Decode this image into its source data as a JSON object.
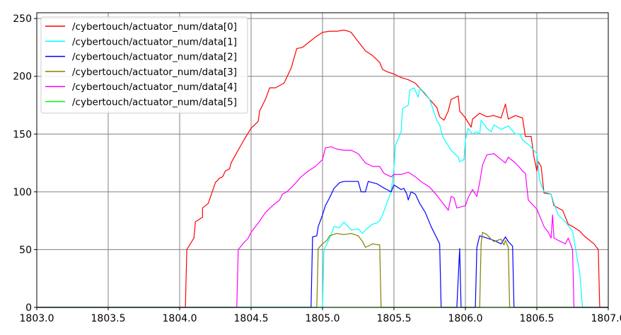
{
  "chart_data": {
    "type": "line",
    "title": "",
    "xlabel": "",
    "ylabel": "",
    "xlim": [
      1803.0,
      1807.0
    ],
    "ylim": [
      0,
      255
    ],
    "xticks": [
      "1803.0",
      "1803.5",
      "1804.0",
      "1804.5",
      "1805.0",
      "1805.5",
      "1806.0",
      "1806.5",
      "1807.0"
    ],
    "yticks": [
      "0",
      "50",
      "100",
      "150",
      "200",
      "250"
    ],
    "grid": true,
    "legend_position": "top-left",
    "series": [
      {
        "name": "/cybertouch/actuator_num/data[0]",
        "color": "#ff0000",
        "points": [
          [
            1803.0,
            0
          ],
          [
            1804.04,
            0
          ],
          [
            1804.05,
            50
          ],
          [
            1804.1,
            60
          ],
          [
            1804.11,
            74
          ],
          [
            1804.16,
            78
          ],
          [
            1804.16,
            86
          ],
          [
            1804.2,
            90
          ],
          [
            1804.22,
            97
          ],
          [
            1804.25,
            108
          ],
          [
            1804.28,
            112
          ],
          [
            1804.3,
            113
          ],
          [
            1804.32,
            118
          ],
          [
            1804.35,
            120
          ],
          [
            1804.36,
            125
          ],
          [
            1804.4,
            134
          ],
          [
            1804.45,
            145
          ],
          [
            1804.5,
            155
          ],
          [
            1804.55,
            161
          ],
          [
            1804.56,
            170
          ],
          [
            1804.6,
            180
          ],
          [
            1804.63,
            190
          ],
          [
            1804.67,
            190
          ],
          [
            1804.73,
            194
          ],
          [
            1804.78,
            207
          ],
          [
            1804.82,
            224
          ],
          [
            1804.86,
            225
          ],
          [
            1804.9,
            229
          ],
          [
            1804.95,
            234
          ],
          [
            1805.0,
            238
          ],
          [
            1805.05,
            239
          ],
          [
            1805.1,
            239
          ],
          [
            1805.15,
            240
          ],
          [
            1805.18,
            239
          ],
          [
            1805.2,
            238
          ],
          [
            1805.25,
            230
          ],
          [
            1805.3,
            222
          ],
          [
            1805.35,
            218
          ],
          [
            1805.4,
            212
          ],
          [
            1805.42,
            206
          ],
          [
            1805.45,
            204
          ],
          [
            1805.5,
            202
          ],
          [
            1805.55,
            199
          ],
          [
            1805.6,
            197
          ],
          [
            1805.65,
            194
          ],
          [
            1805.7,
            187
          ],
          [
            1805.75,
            180
          ],
          [
            1805.8,
            173
          ],
          [
            1805.82,
            165
          ],
          [
            1805.85,
            162
          ],
          [
            1805.88,
            170
          ],
          [
            1805.9,
            180
          ],
          [
            1805.95,
            183
          ],
          [
            1805.96,
            170
          ],
          [
            1806.0,
            164
          ],
          [
            1806.02,
            160
          ],
          [
            1806.04,
            156
          ],
          [
            1806.05,
            163
          ],
          [
            1806.1,
            168
          ],
          [
            1806.15,
            165
          ],
          [
            1806.2,
            166
          ],
          [
            1806.25,
            164
          ],
          [
            1806.28,
            176
          ],
          [
            1806.3,
            163
          ],
          [
            1806.35,
            166
          ],
          [
            1806.4,
            164
          ],
          [
            1806.42,
            148
          ],
          [
            1806.46,
            148
          ],
          [
            1806.48,
            130
          ],
          [
            1806.5,
            118
          ],
          [
            1806.51,
            126
          ],
          [
            1806.53,
            122
          ],
          [
            1806.55,
            99
          ],
          [
            1806.6,
            98
          ],
          [
            1806.62,
            88
          ],
          [
            1806.68,
            84
          ],
          [
            1806.72,
            72
          ],
          [
            1806.75,
            70
          ],
          [
            1806.8,
            66
          ],
          [
            1806.83,
            62
          ],
          [
            1806.85,
            60
          ],
          [
            1806.9,
            55
          ],
          [
            1806.93,
            50
          ],
          [
            1806.94,
            0
          ],
          [
            1807.0,
            0
          ]
        ]
      },
      {
        "name": "/cybertouch/actuator_num/data[1]",
        "color": "#00ffff",
        "points": [
          [
            1803.0,
            0
          ],
          [
            1805.0,
            0
          ],
          [
            1805.01,
            50
          ],
          [
            1805.03,
            55
          ],
          [
            1805.05,
            60
          ],
          [
            1805.08,
            70
          ],
          [
            1805.12,
            69
          ],
          [
            1805.15,
            74
          ],
          [
            1805.2,
            67
          ],
          [
            1805.25,
            68
          ],
          [
            1805.28,
            64
          ],
          [
            1805.3,
            67
          ],
          [
            1805.35,
            72
          ],
          [
            1805.38,
            73
          ],
          [
            1805.4,
            75
          ],
          [
            1805.42,
            80
          ],
          [
            1805.45,
            90
          ],
          [
            1805.48,
            100
          ],
          [
            1805.5,
            120
          ],
          [
            1805.51,
            140
          ],
          [
            1805.55,
            152
          ],
          [
            1805.56,
            172
          ],
          [
            1805.6,
            175
          ],
          [
            1805.61,
            188
          ],
          [
            1805.64,
            190
          ],
          [
            1805.67,
            182
          ],
          [
            1805.68,
            190
          ],
          [
            1805.72,
            185
          ],
          [
            1805.75,
            180
          ],
          [
            1805.8,
            162
          ],
          [
            1805.82,
            158
          ],
          [
            1805.84,
            148
          ],
          [
            1805.88,
            140
          ],
          [
            1805.9,
            136
          ],
          [
            1805.95,
            130
          ],
          [
            1805.96,
            126
          ],
          [
            1805.99,
            128
          ],
          [
            1806.0,
            145
          ],
          [
            1806.02,
            155
          ],
          [
            1806.05,
            150
          ],
          [
            1806.08,
            152
          ],
          [
            1806.1,
            150
          ],
          [
            1806.11,
            162
          ],
          [
            1806.15,
            155
          ],
          [
            1806.18,
            152
          ],
          [
            1806.2,
            158
          ],
          [
            1806.25,
            154
          ],
          [
            1806.3,
            157
          ],
          [
            1806.35,
            150
          ],
          [
            1806.38,
            150
          ],
          [
            1806.4,
            145
          ],
          [
            1806.45,
            140
          ],
          [
            1806.5,
            133
          ],
          [
            1806.52,
            110
          ],
          [
            1806.55,
            100
          ],
          [
            1806.6,
            98
          ],
          [
            1806.62,
            90
          ],
          [
            1806.65,
            80
          ],
          [
            1806.7,
            74
          ],
          [
            1806.75,
            66
          ],
          [
            1806.8,
            30
          ],
          [
            1806.82,
            0
          ],
          [
            1807.0,
            0
          ]
        ]
      },
      {
        "name": "/cybertouch/actuator_num/data[2]",
        "color": "#0000ff",
        "points": [
          [
            1803.0,
            0
          ],
          [
            1804.92,
            0
          ],
          [
            1804.93,
            61
          ],
          [
            1804.96,
            62
          ],
          [
            1804.97,
            70
          ],
          [
            1805.0,
            80
          ],
          [
            1805.02,
            88
          ],
          [
            1805.05,
            95
          ],
          [
            1805.08,
            103
          ],
          [
            1805.12,
            108
          ],
          [
            1805.15,
            109
          ],
          [
            1805.2,
            109
          ],
          [
            1805.25,
            109
          ],
          [
            1805.27,
            100
          ],
          [
            1805.3,
            100
          ],
          [
            1805.32,
            109
          ],
          [
            1805.38,
            107
          ],
          [
            1805.42,
            104
          ],
          [
            1805.45,
            102
          ],
          [
            1805.48,
            100
          ],
          [
            1805.5,
            106
          ],
          [
            1805.55,
            102
          ],
          [
            1805.57,
            103
          ],
          [
            1805.59,
            98
          ],
          [
            1805.6,
            93
          ],
          [
            1805.62,
            100
          ],
          [
            1805.65,
            98
          ],
          [
            1805.68,
            90
          ],
          [
            1805.72,
            82
          ],
          [
            1805.76,
            70
          ],
          [
            1805.8,
            60
          ],
          [
            1805.82,
            55
          ],
          [
            1805.83,
            0
          ],
          [
            1805.94,
            0
          ],
          [
            1805.96,
            51
          ],
          [
            1805.97,
            0
          ],
          [
            1806.07,
            0
          ],
          [
            1806.08,
            52
          ],
          [
            1806.1,
            62
          ],
          [
            1806.15,
            60
          ],
          [
            1806.2,
            58
          ],
          [
            1806.25,
            55
          ],
          [
            1806.28,
            61
          ],
          [
            1806.3,
            57
          ],
          [
            1806.33,
            53
          ],
          [
            1806.34,
            0
          ],
          [
            1807.0,
            0
          ]
        ]
      },
      {
        "name": "/cybertouch/actuator_num/data[3]",
        "color": "#808000",
        "points": [
          [
            1803.0,
            0
          ],
          [
            1804.96,
            0
          ],
          [
            1804.97,
            51
          ],
          [
            1805.0,
            55
          ],
          [
            1805.03,
            58
          ],
          [
            1805.05,
            62
          ],
          [
            1805.1,
            64
          ],
          [
            1805.15,
            63
          ],
          [
            1805.2,
            64
          ],
          [
            1805.25,
            62
          ],
          [
            1805.28,
            57
          ],
          [
            1805.3,
            52
          ],
          [
            1805.32,
            53
          ],
          [
            1805.35,
            55
          ],
          [
            1805.4,
            54
          ],
          [
            1805.41,
            0
          ],
          [
            1806.1,
            0
          ],
          [
            1806.11,
            55
          ],
          [
            1806.12,
            65
          ],
          [
            1806.15,
            63
          ],
          [
            1806.18,
            59
          ],
          [
            1806.2,
            57
          ],
          [
            1806.25,
            59
          ],
          [
            1806.27,
            54
          ],
          [
            1806.28,
            58
          ],
          [
            1806.3,
            52
          ],
          [
            1806.31,
            0
          ],
          [
            1807.0,
            0
          ]
        ]
      },
      {
        "name": "/cybertouch/actuator_num/data[4]",
        "color": "#ff00ff",
        "points": [
          [
            1803.0,
            0
          ],
          [
            1804.4,
            0
          ],
          [
            1804.41,
            50
          ],
          [
            1804.45,
            56
          ],
          [
            1804.48,
            60
          ],
          [
            1804.5,
            65
          ],
          [
            1804.55,
            73
          ],
          [
            1804.6,
            82
          ],
          [
            1804.65,
            88
          ],
          [
            1804.7,
            93
          ],
          [
            1804.72,
            98
          ],
          [
            1804.75,
            100
          ],
          [
            1804.8,
            106
          ],
          [
            1804.85,
            113
          ],
          [
            1804.9,
            118
          ],
          [
            1804.95,
            122
          ],
          [
            1805.0,
            128
          ],
          [
            1805.02,
            138
          ],
          [
            1805.06,
            139
          ],
          [
            1805.1,
            137
          ],
          [
            1805.15,
            136
          ],
          [
            1805.2,
            136
          ],
          [
            1805.25,
            133
          ],
          [
            1805.3,
            125
          ],
          [
            1805.35,
            122
          ],
          [
            1805.4,
            122
          ],
          [
            1805.43,
            116
          ],
          [
            1805.48,
            113
          ],
          [
            1805.5,
            115
          ],
          [
            1805.55,
            115
          ],
          [
            1805.6,
            117
          ],
          [
            1805.65,
            113
          ],
          [
            1805.7,
            108
          ],
          [
            1805.75,
            104
          ],
          [
            1805.8,
            97
          ],
          [
            1805.85,
            89
          ],
          [
            1805.88,
            84
          ],
          [
            1805.9,
            96
          ],
          [
            1805.92,
            95
          ],
          [
            1805.94,
            86
          ],
          [
            1806.0,
            88
          ],
          [
            1806.02,
            95
          ],
          [
            1806.05,
            102
          ],
          [
            1806.08,
            96
          ],
          [
            1806.1,
            108
          ],
          [
            1806.12,
            123
          ],
          [
            1806.15,
            132
          ],
          [
            1806.2,
            133
          ],
          [
            1806.25,
            128
          ],
          [
            1806.28,
            125
          ],
          [
            1806.3,
            130
          ],
          [
            1806.35,
            125
          ],
          [
            1806.38,
            121
          ],
          [
            1806.4,
            118
          ],
          [
            1806.42,
            116
          ],
          [
            1806.44,
            93
          ],
          [
            1806.5,
            85
          ],
          [
            1806.55,
            70
          ],
          [
            1806.58,
            65
          ],
          [
            1806.6,
            60
          ],
          [
            1806.61,
            80
          ],
          [
            1806.62,
            60
          ],
          [
            1806.65,
            58
          ],
          [
            1806.7,
            55
          ],
          [
            1806.72,
            60
          ],
          [
            1806.75,
            50
          ],
          [
            1806.76,
            0
          ],
          [
            1807.0,
            0
          ]
        ]
      },
      {
        "name": "/cybertouch/actuator_num/data[5]",
        "color": "#00ff00",
        "points": [
          [
            1803.0,
            0
          ],
          [
            1807.0,
            0
          ]
        ]
      }
    ]
  }
}
